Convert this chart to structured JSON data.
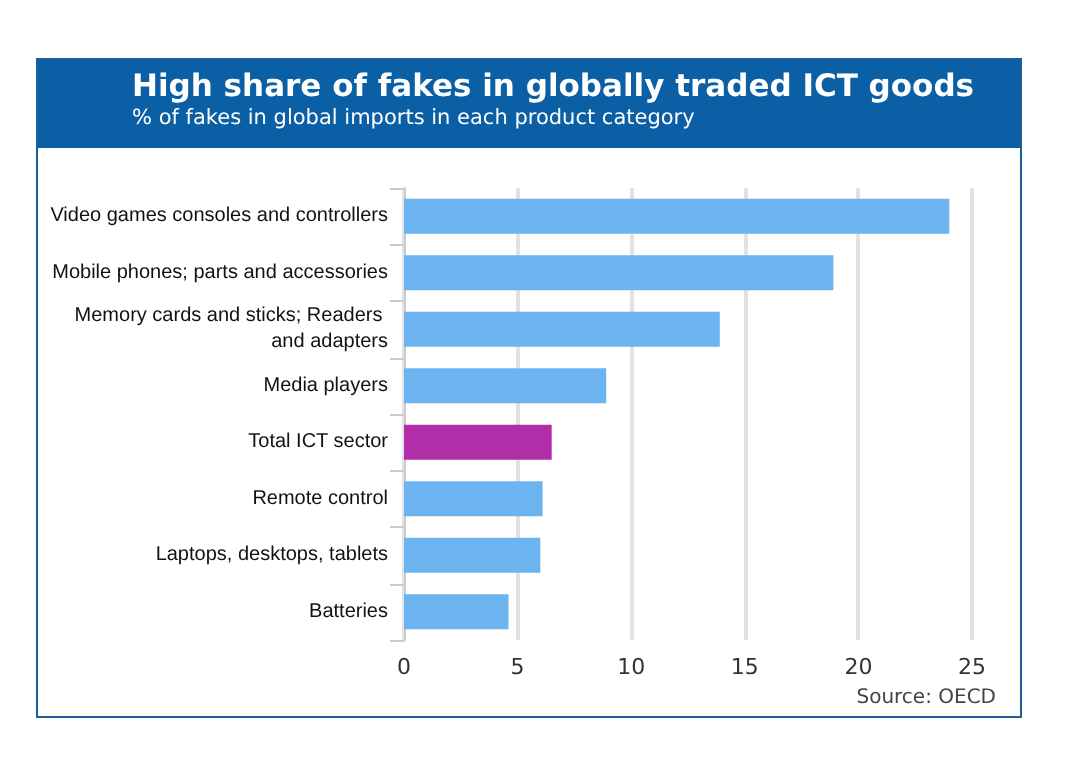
{
  "chart_data": {
    "type": "bar",
    "orientation": "horizontal",
    "title": "High share of fakes in globally traded ICT goods",
    "subtitle": "% of fakes in global imports in each product category",
    "categories": [
      "Video games consoles and controllers",
      "Mobile phones; parts and accessories",
      "Memory cards and sticks; Readers and adapters",
      "Media players",
      "Total ICT sector",
      "Remote control",
      "Laptops, desktops, tablets",
      "Batteries"
    ],
    "values": [
      24.0,
      18.9,
      13.9,
      8.9,
      6.5,
      6.1,
      6.0,
      4.6
    ],
    "colors": [
      "#6cb4f0",
      "#6cb4f0",
      "#6cb4f0",
      "#6cb4f0",
      "#b12ea8",
      "#6cb4f0",
      "#6cb4f0",
      "#6cb4f0"
    ],
    "xlim": [
      0,
      25
    ],
    "xticks": [
      0,
      5,
      10,
      15,
      20,
      25
    ],
    "grid": "x",
    "annotations": [
      "Source: OECD"
    ]
  }
}
